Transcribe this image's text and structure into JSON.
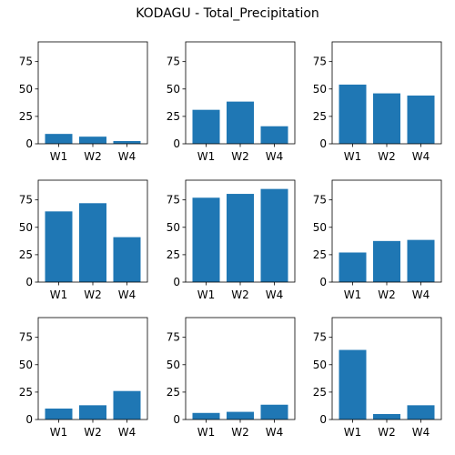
{
  "title": "KODAGU - Total_Precipitation",
  "chart_data": [
    {
      "type": "bar",
      "categories": [
        "W1",
        "W2",
        "W4"
      ],
      "values": [
        9,
        6.5,
        2.5
      ],
      "ylim": [
        0,
        93
      ],
      "yticks": [
        0,
        25,
        50,
        75
      ],
      "color": "#1f77b4"
    },
    {
      "type": "bar",
      "categories": [
        "W1",
        "W2",
        "W4"
      ],
      "values": [
        31,
        38.5,
        16
      ],
      "ylim": [
        0,
        93
      ],
      "yticks": [
        0,
        25,
        50,
        75
      ],
      "color": "#1f77b4"
    },
    {
      "type": "bar",
      "categories": [
        "W1",
        "W2",
        "W4"
      ],
      "values": [
        54,
        46,
        44
      ],
      "ylim": [
        0,
        93
      ],
      "yticks": [
        0,
        25,
        50,
        75
      ],
      "color": "#1f77b4"
    },
    {
      "type": "bar",
      "categories": [
        "W1",
        "W2",
        "W4"
      ],
      "values": [
        64.5,
        72,
        41
      ],
      "ylim": [
        0,
        93
      ],
      "yticks": [
        0,
        25,
        50,
        75
      ],
      "color": "#1f77b4"
    },
    {
      "type": "bar",
      "categories": [
        "W1",
        "W2",
        "W4"
      ],
      "values": [
        77,
        80.5,
        85
      ],
      "ylim": [
        0,
        93
      ],
      "yticks": [
        0,
        25,
        50,
        75
      ],
      "color": "#1f77b4"
    },
    {
      "type": "bar",
      "categories": [
        "W1",
        "W2",
        "W4"
      ],
      "values": [
        27,
        37.5,
        38.5
      ],
      "ylim": [
        0,
        93
      ],
      "yticks": [
        0,
        25,
        50,
        75
      ],
      "color": "#1f77b4"
    },
    {
      "type": "bar",
      "categories": [
        "W1",
        "W2",
        "W4"
      ],
      "values": [
        10,
        13,
        26
      ],
      "ylim": [
        0,
        93
      ],
      "yticks": [
        0,
        25,
        50,
        75
      ],
      "color": "#1f77b4"
    },
    {
      "type": "bar",
      "categories": [
        "W1",
        "W2",
        "W4"
      ],
      "values": [
        6,
        7,
        13.5
      ],
      "ylim": [
        0,
        93
      ],
      "yticks": [
        0,
        25,
        50,
        75
      ],
      "color": "#1f77b4"
    },
    {
      "type": "bar",
      "categories": [
        "W1",
        "W2",
        "W4"
      ],
      "values": [
        63.5,
        5,
        13
      ],
      "ylim": [
        0,
        93
      ],
      "yticks": [
        0,
        25,
        50,
        75
      ],
      "color": "#1f77b4"
    }
  ]
}
